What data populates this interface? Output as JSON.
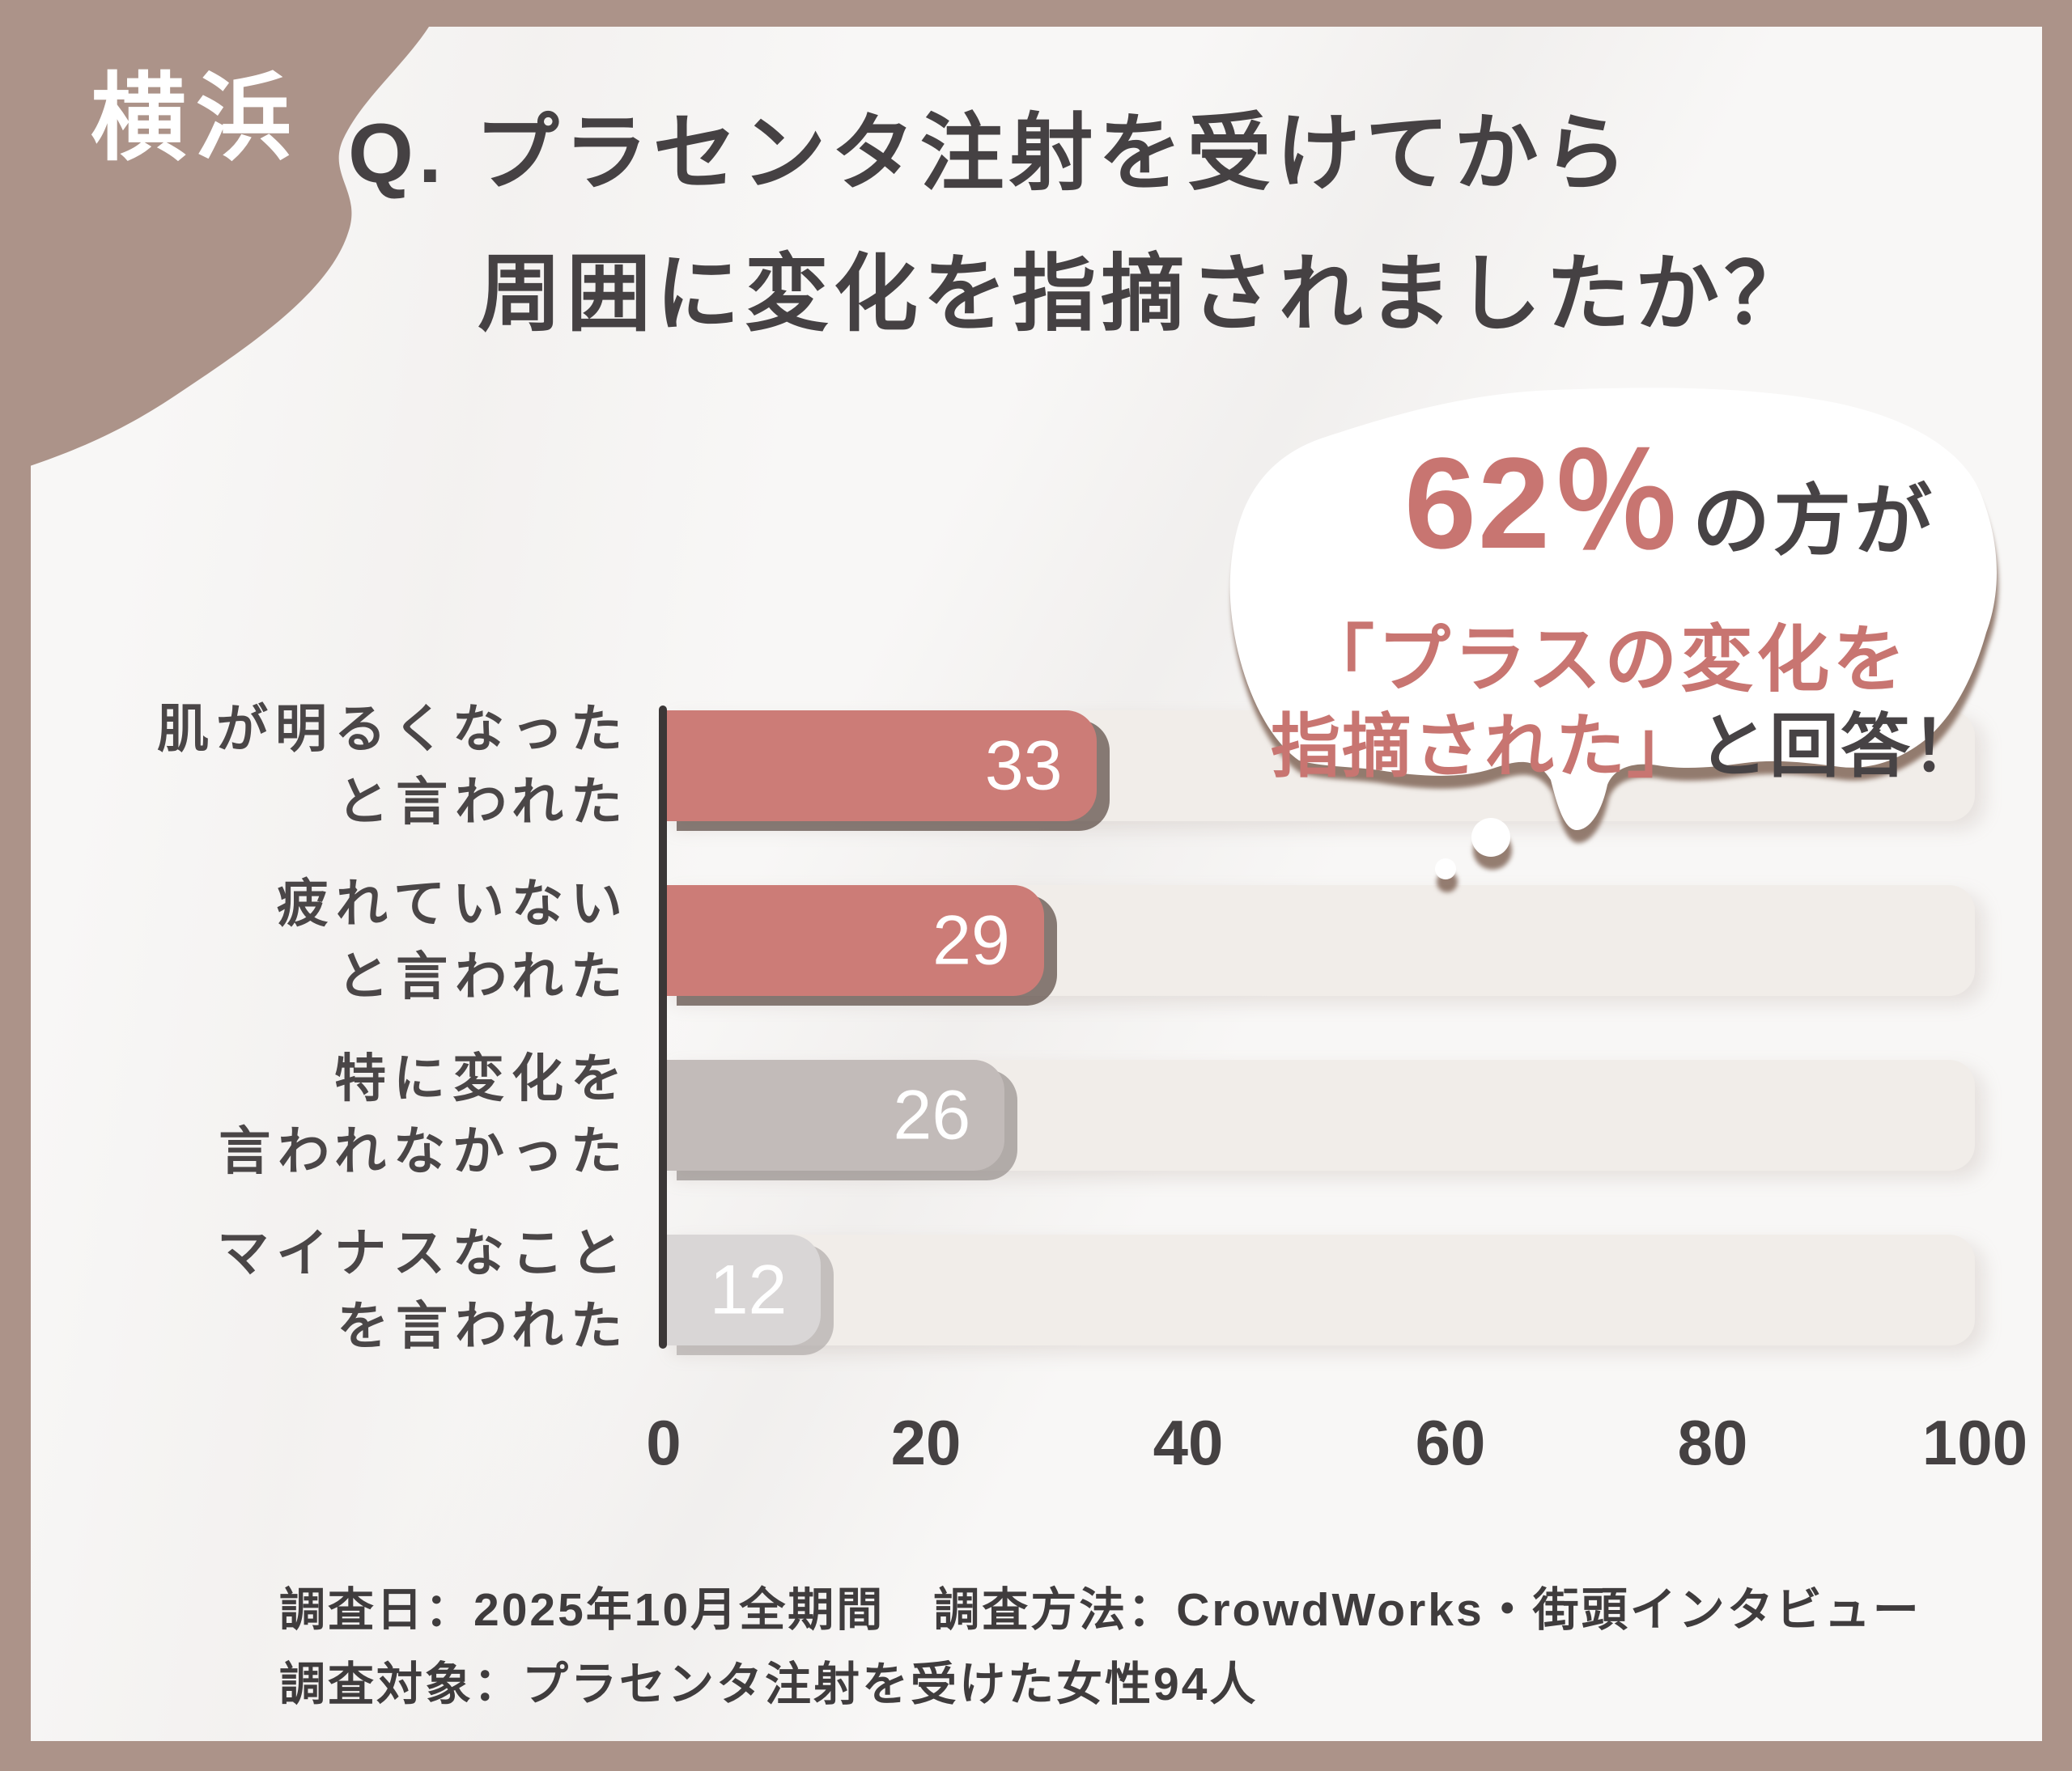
{
  "badge": {
    "label": "横浜"
  },
  "title": {
    "line1": "Q. プラセンタ注射を受けてから",
    "line2": "周囲に変化を指摘されましたか？"
  },
  "callout": {
    "stat": "62％",
    "suffix": "の方が",
    "line2": "「プラスの変化を",
    "line3_highlight": "指摘された」",
    "line3_rest": "と回答！",
    "accent_color": "#c87571"
  },
  "chart_data": {
    "type": "bar",
    "orientation": "horizontal",
    "title": "プラセンタ注射を受けてから周囲に変化を指摘されましたか？",
    "categories": [
      [
        "肌が明るくなった",
        "と言われた"
      ],
      [
        "疲れていない",
        "と言われた"
      ],
      [
        "特に変化を",
        "言われなかった"
      ],
      [
        "マイナスなこと",
        "を言われた"
      ]
    ],
    "values": [
      33,
      29,
      26,
      12
    ],
    "bar_colors": [
      "#cc7c77",
      "#cc7c77",
      "#c2bbb9",
      "#d9d6d6"
    ],
    "bar_shadow_colors": [
      "rgba(97,82,75,0.75)",
      "rgba(97,82,75,0.75)",
      "rgba(150,143,140,0.7)",
      "rgba(176,171,169,0.7)"
    ],
    "value_label_color": "#ffffff",
    "xlabel": "",
    "ylabel": "",
    "xlim": [
      0,
      100
    ],
    "x_ticks": [
      0,
      20,
      40,
      60,
      80,
      100
    ],
    "grid": false,
    "track_color": "#f1ede9",
    "axis_color": "#3b3737"
  },
  "footer": {
    "line1": "調査日：2025年10月全期間　調査方法：CrowdWorks・街頭インタビュー",
    "line2": "調査対象：プラセンタ注射を受けた女性94人"
  },
  "colors": {
    "frame": "#ac9389",
    "panel": "#f8f7f6",
    "title_text": "#454143",
    "category_text": "#4a4647",
    "tick_text": "#454142",
    "footer_text": "#3f3c3d",
    "bubble_fill": "#ffffff",
    "bubble_shadow": "rgba(123,94,79,0.8)"
  }
}
